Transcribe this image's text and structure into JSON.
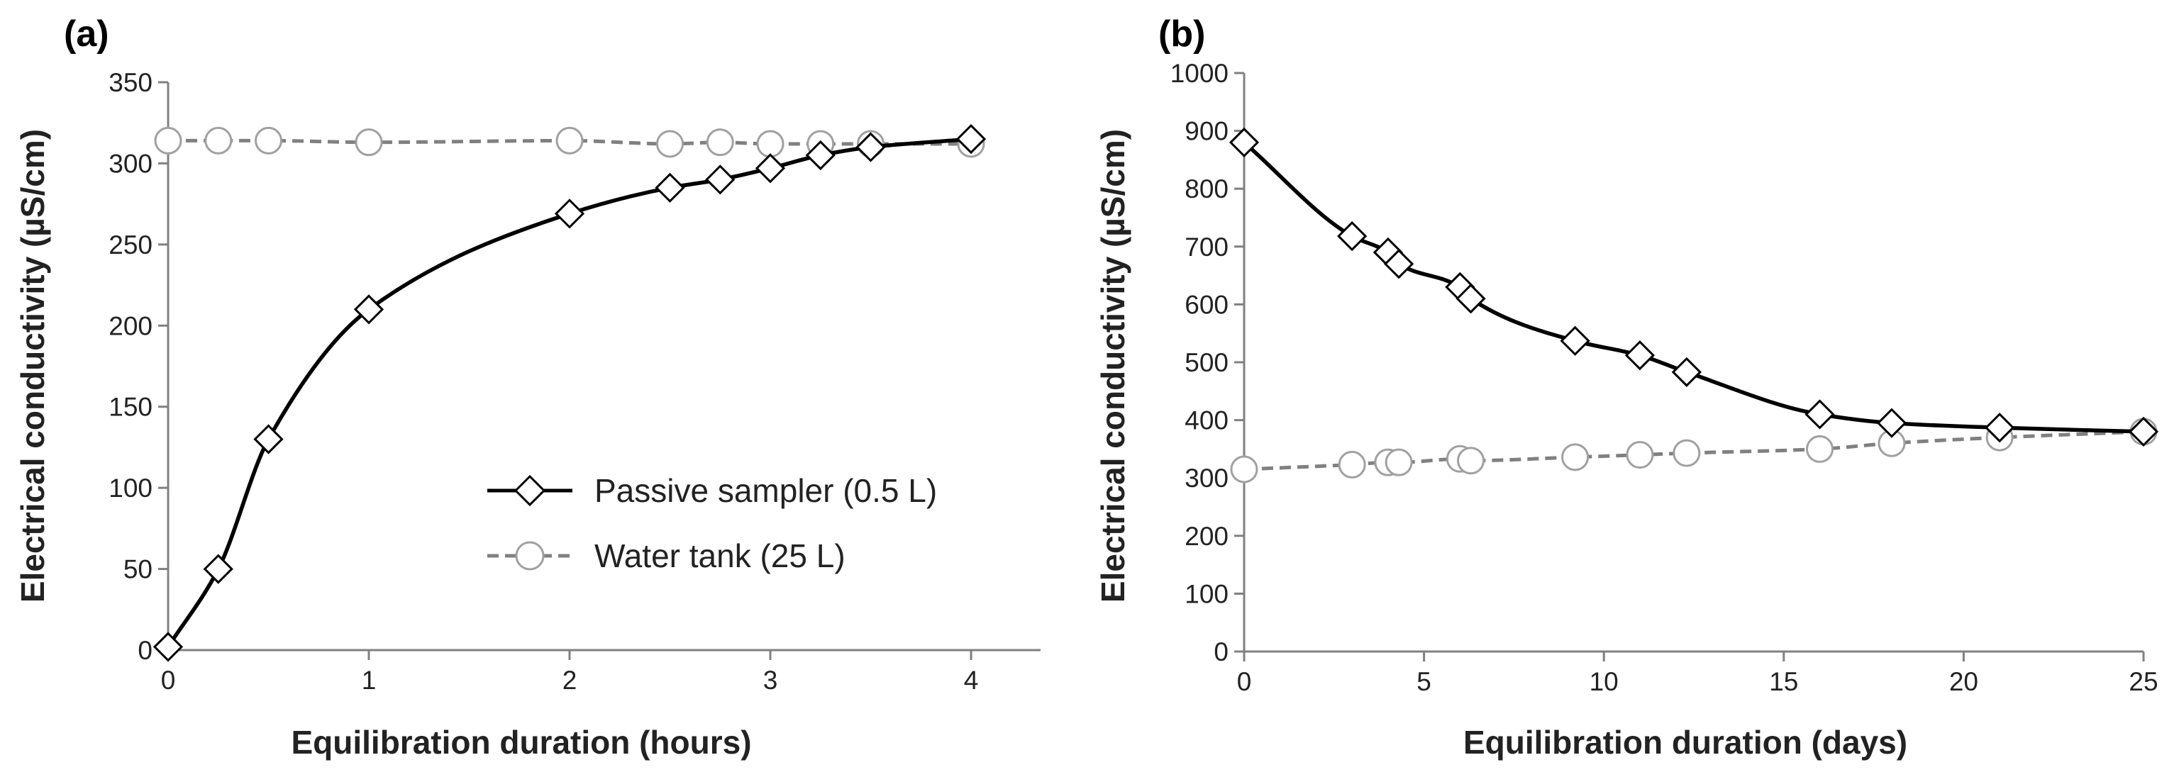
{
  "chart_data": [
    {
      "type": "line",
      "panel_label": "(a)",
      "xlabel": "Equilibration duration (hours)",
      "ylabel": "Electrical conductivity (µS/cm)",
      "xlim": [
        0,
        4.3
      ],
      "ylim": [
        0,
        350
      ],
      "xticks": [
        0,
        1,
        2,
        3,
        4
      ],
      "yticks": [
        0,
        50,
        100,
        150,
        200,
        250,
        300,
        350
      ],
      "legend_position": "center-right",
      "series": [
        {
          "name": "Passive sampler (0.5 L)",
          "marker": "diamond",
          "line_style": "solid",
          "color": "#000000",
          "x": [
            0,
            0.25,
            0.5,
            1,
            2,
            2.5,
            2.75,
            3,
            3.25,
            3.5,
            4
          ],
          "y": [
            2,
            50,
            130,
            210,
            269,
            285,
            290,
            297,
            305,
            310,
            315
          ]
        },
        {
          "name": "Water tank (25 L)",
          "marker": "circle",
          "line_style": "dashed",
          "color": "#808080",
          "x": [
            0,
            0.25,
            0.5,
            1,
            2,
            2.5,
            2.75,
            3,
            3.25,
            3.5,
            4
          ],
          "y": [
            314,
            314,
            314,
            313,
            314,
            312,
            313,
            312,
            312,
            312,
            312
          ]
        }
      ]
    },
    {
      "type": "line",
      "panel_label": "(b)",
      "xlabel": "Equilibration duration (days)",
      "ylabel": "Electrical conductivity (µS/cm)",
      "xlim": [
        0,
        25
      ],
      "ylim": [
        0,
        1000
      ],
      "xticks": [
        0,
        5,
        10,
        15,
        20,
        25
      ],
      "yticks": [
        0,
        100,
        200,
        300,
        400,
        500,
        600,
        700,
        800,
        900,
        1000
      ],
      "series": [
        {
          "name": "Passive sampler (0.5 L)",
          "marker": "diamond",
          "line_style": "solid",
          "color": "#000000",
          "x": [
            0,
            3,
            4,
            4.3,
            6,
            6.3,
            9.2,
            11,
            12.3,
            16,
            18,
            21,
            25
          ],
          "y": [
            880,
            718,
            690,
            670,
            630,
            610,
            537,
            512,
            483,
            410,
            395,
            387,
            380
          ]
        },
        {
          "name": "Water tank (25 L)",
          "marker": "circle",
          "line_style": "dashed",
          "color": "#808080",
          "x": [
            0,
            3,
            4,
            4.3,
            6,
            6.3,
            9.2,
            11,
            12.3,
            16,
            18,
            21,
            25
          ],
          "y": [
            315,
            323,
            327,
            327,
            333,
            330,
            336,
            340,
            343,
            350,
            360,
            370,
            380
          ]
        }
      ]
    }
  ]
}
